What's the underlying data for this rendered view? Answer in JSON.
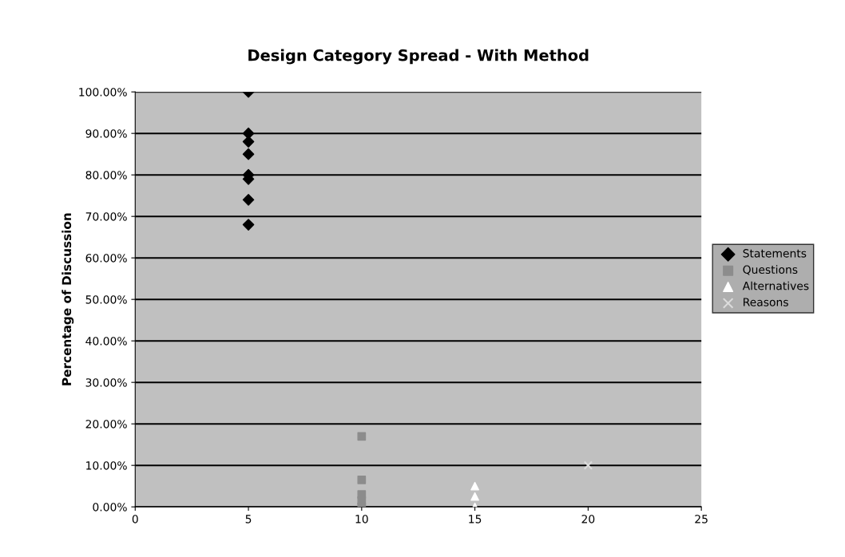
{
  "chart_data": {
    "type": "scatter",
    "title": "Design Category Spread - With Method",
    "ylabel": "Percentage of Discussion",
    "xlim": [
      0,
      25
    ],
    "xticks": [
      0,
      5,
      10,
      15,
      20,
      25
    ],
    "ylim": [
      0,
      100
    ],
    "yticks": [
      {
        "value": 0,
        "label": "0.00%"
      },
      {
        "value": 10,
        "label": "10.00%"
      },
      {
        "value": 20,
        "label": "20.00%"
      },
      {
        "value": 30,
        "label": "30.00%"
      },
      {
        "value": 40,
        "label": "40.00%"
      },
      {
        "value": 50,
        "label": "50.00%"
      },
      {
        "value": 60,
        "label": "60.00%"
      },
      {
        "value": 70,
        "label": "70.00%"
      },
      {
        "value": 80,
        "label": "80.00%"
      },
      {
        "value": 90,
        "label": "90.00%"
      },
      {
        "value": 100,
        "label": "100.00%"
      }
    ],
    "grid": "y",
    "legend": "right",
    "series": [
      {
        "name": "Statements",
        "color": "#000000",
        "marker": "diamond",
        "x": [
          5,
          5,
          5,
          5,
          5,
          5,
          5,
          5
        ],
        "values": [
          100,
          90,
          88,
          85,
          80,
          79,
          74,
          68
        ]
      },
      {
        "name": "Questions",
        "color": "#8c8c8c",
        "marker": "square",
        "x": [
          10,
          10,
          10,
          10,
          10
        ],
        "values": [
          17,
          6.5,
          3,
          1.5,
          0
        ]
      },
      {
        "name": "Alternatives",
        "color": "#ffffff",
        "marker": "triangle",
        "x": [
          15,
          15,
          15
        ],
        "values": [
          5,
          2.5,
          0
        ]
      },
      {
        "name": "Reasons",
        "color": "#dcdcdc",
        "marker": "cross",
        "x": [
          20
        ],
        "values": [
          10
        ]
      }
    ]
  }
}
